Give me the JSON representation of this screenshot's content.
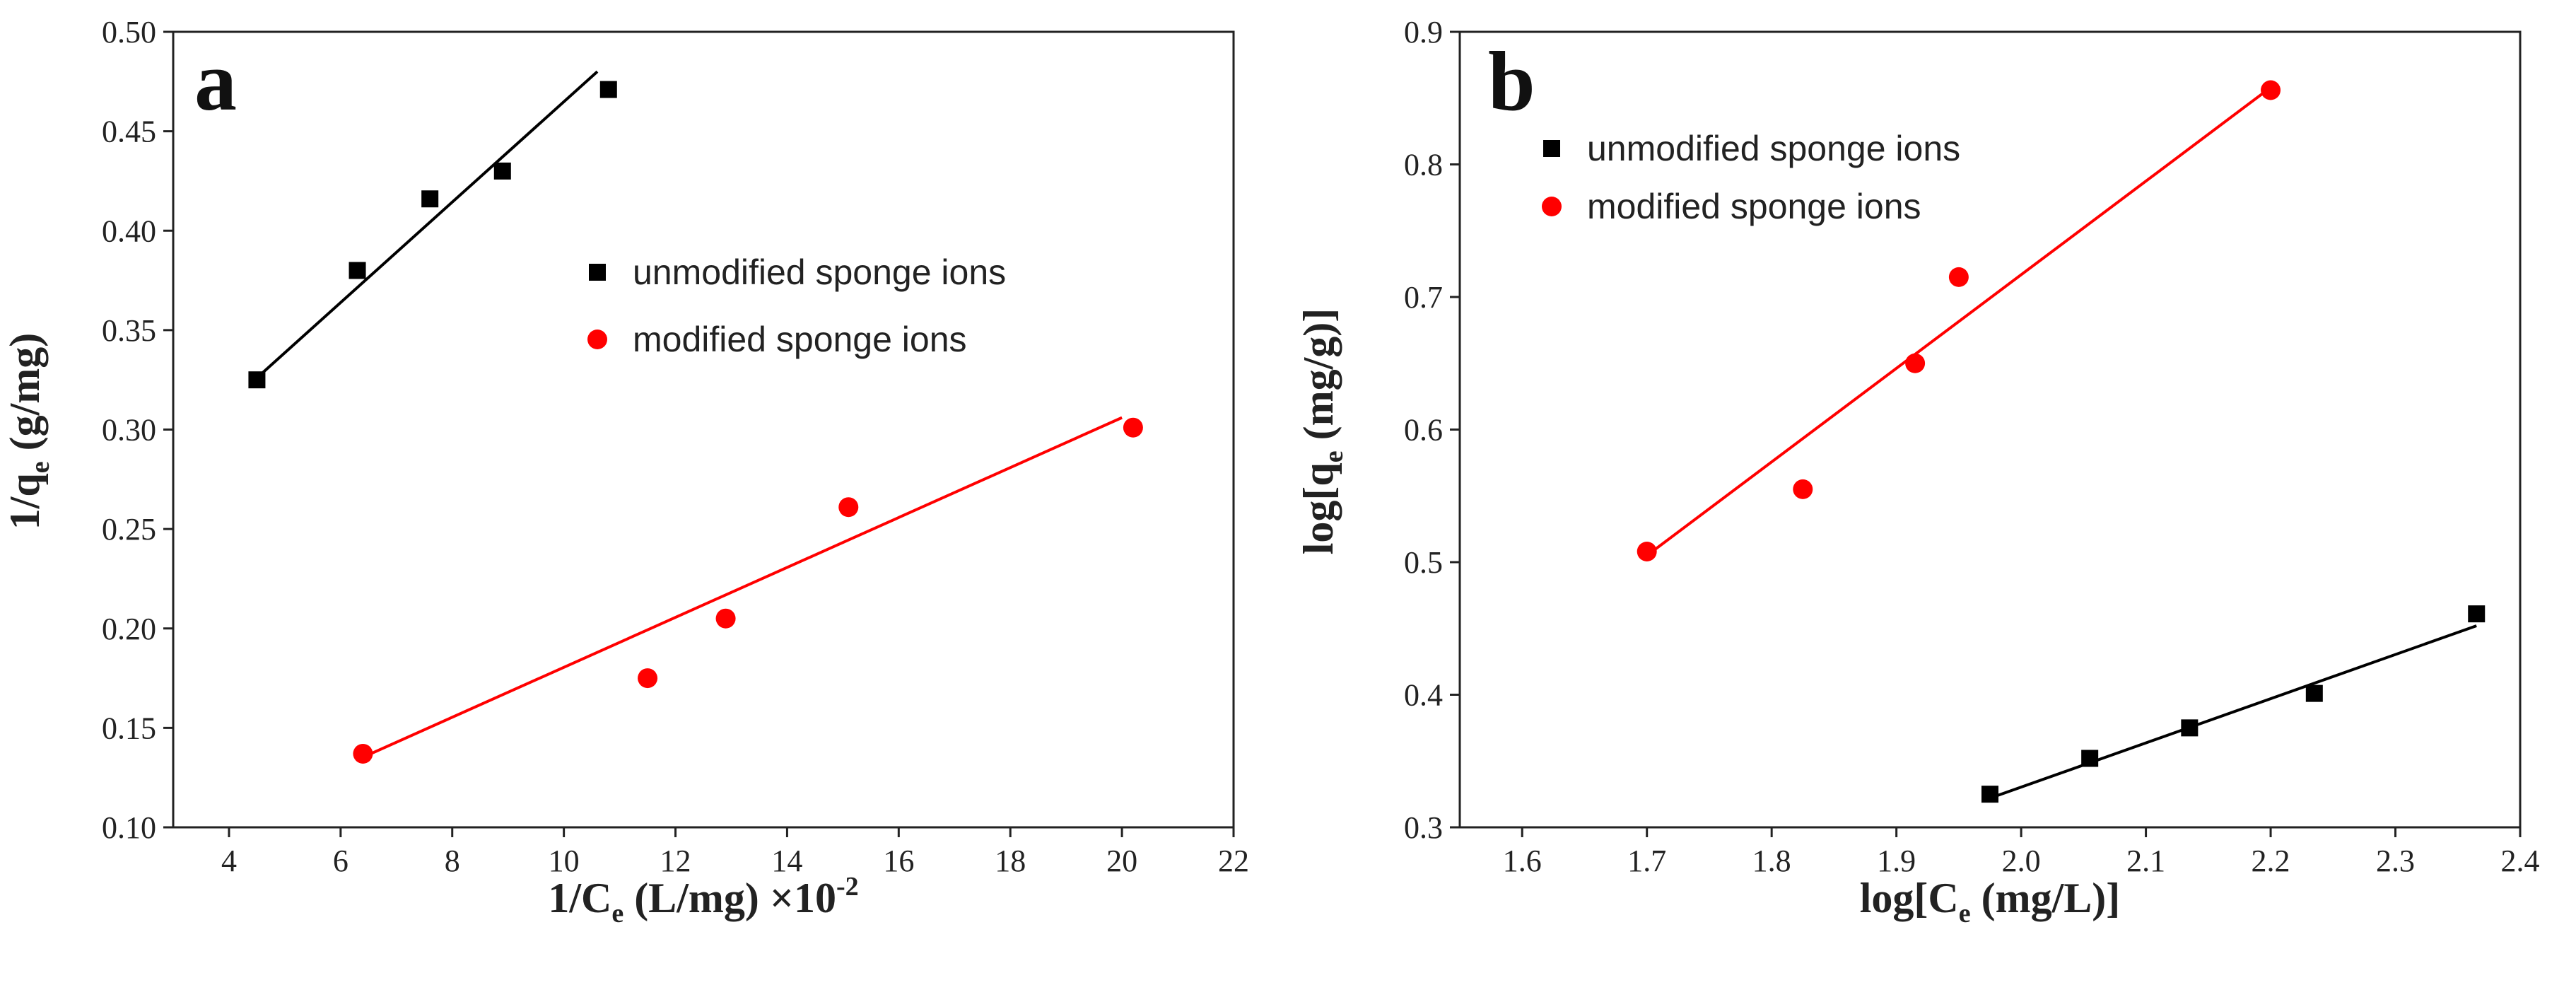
{
  "chart_data": [
    {
      "type": "scatter",
      "panel_label": "a",
      "xlabel": {
        "main": "1/C",
        "sub": "e",
        "rest": " (L/mg) ×10",
        "sup": "-2"
      },
      "ylabel": {
        "main": "1/q",
        "sub": "e",
        "rest": " (g/mg)"
      },
      "xlim": [
        3,
        22
      ],
      "ylim": [
        0.1,
        0.5
      ],
      "xticks": [
        "4",
        "6",
        "8",
        "10",
        "12",
        "14",
        "16",
        "18",
        "20",
        "22"
      ],
      "yticks": [
        "0.10",
        "0.15",
        "0.20",
        "0.25",
        "0.30",
        "0.35",
        "0.40",
        "0.45",
        "0.50"
      ],
      "legend_position": "center-right",
      "series": [
        {
          "name": "unmodified sponge ions",
          "marker": "square",
          "color": "#000000",
          "x": [
            4.5,
            6.3,
            7.6,
            8.9,
            10.8
          ],
          "y": [
            0.325,
            0.38,
            0.416,
            0.43,
            0.471
          ],
          "fit": {
            "x": [
              4.5,
              10.6
            ],
            "y": [
              0.326,
              0.48
            ]
          }
        },
        {
          "name": "modified sponge ions",
          "marker": "circle",
          "color": "#ff0000",
          "x": [
            6.4,
            11.5,
            12.9,
            15.1,
            20.2
          ],
          "y": [
            0.137,
            0.175,
            0.205,
            0.261,
            0.301
          ],
          "fit": {
            "x": [
              6.3,
              20.0
            ],
            "y": [
              0.134,
              0.306
            ]
          }
        }
      ]
    },
    {
      "type": "scatter",
      "panel_label": "b",
      "xlabel": {
        "main": "log[C",
        "sub": "e",
        "rest": " (mg/L)]",
        "sup": ""
      },
      "ylabel": {
        "main": "log[q",
        "sub": "e",
        "rest": " (mg/g)]"
      },
      "xlim": [
        1.55,
        2.4
      ],
      "ylim": [
        0.3,
        0.9
      ],
      "xticks": [
        "1.6",
        "1.7",
        "1.8",
        "1.9",
        "2.0",
        "2.1",
        "2.2",
        "2.3",
        "2.4"
      ],
      "yticks": [
        "0.3",
        "0.4",
        "0.5",
        "0.6",
        "0.7",
        "0.8",
        "0.9"
      ],
      "legend_position": "top-center",
      "series": [
        {
          "name": "unmodified sponge ions",
          "marker": "square",
          "color": "#000000",
          "x": [
            1.975,
            2.055,
            2.135,
            2.235,
            2.365
          ],
          "y": [
            0.325,
            0.352,
            0.375,
            0.401,
            0.461
          ],
          "fit": {
            "x": [
              1.975,
              2.365
            ],
            "y": [
              0.322,
              0.452
            ]
          }
        },
        {
          "name": "modified sponge ions",
          "marker": "circle",
          "color": "#ff0000",
          "x": [
            1.7,
            1.825,
            1.915,
            1.95,
            2.2
          ],
          "y": [
            0.508,
            0.555,
            0.65,
            0.715,
            0.856
          ],
          "fit": {
            "x": [
              1.7,
              2.2
            ],
            "y": [
              0.505,
              0.858
            ]
          }
        }
      ]
    }
  ]
}
